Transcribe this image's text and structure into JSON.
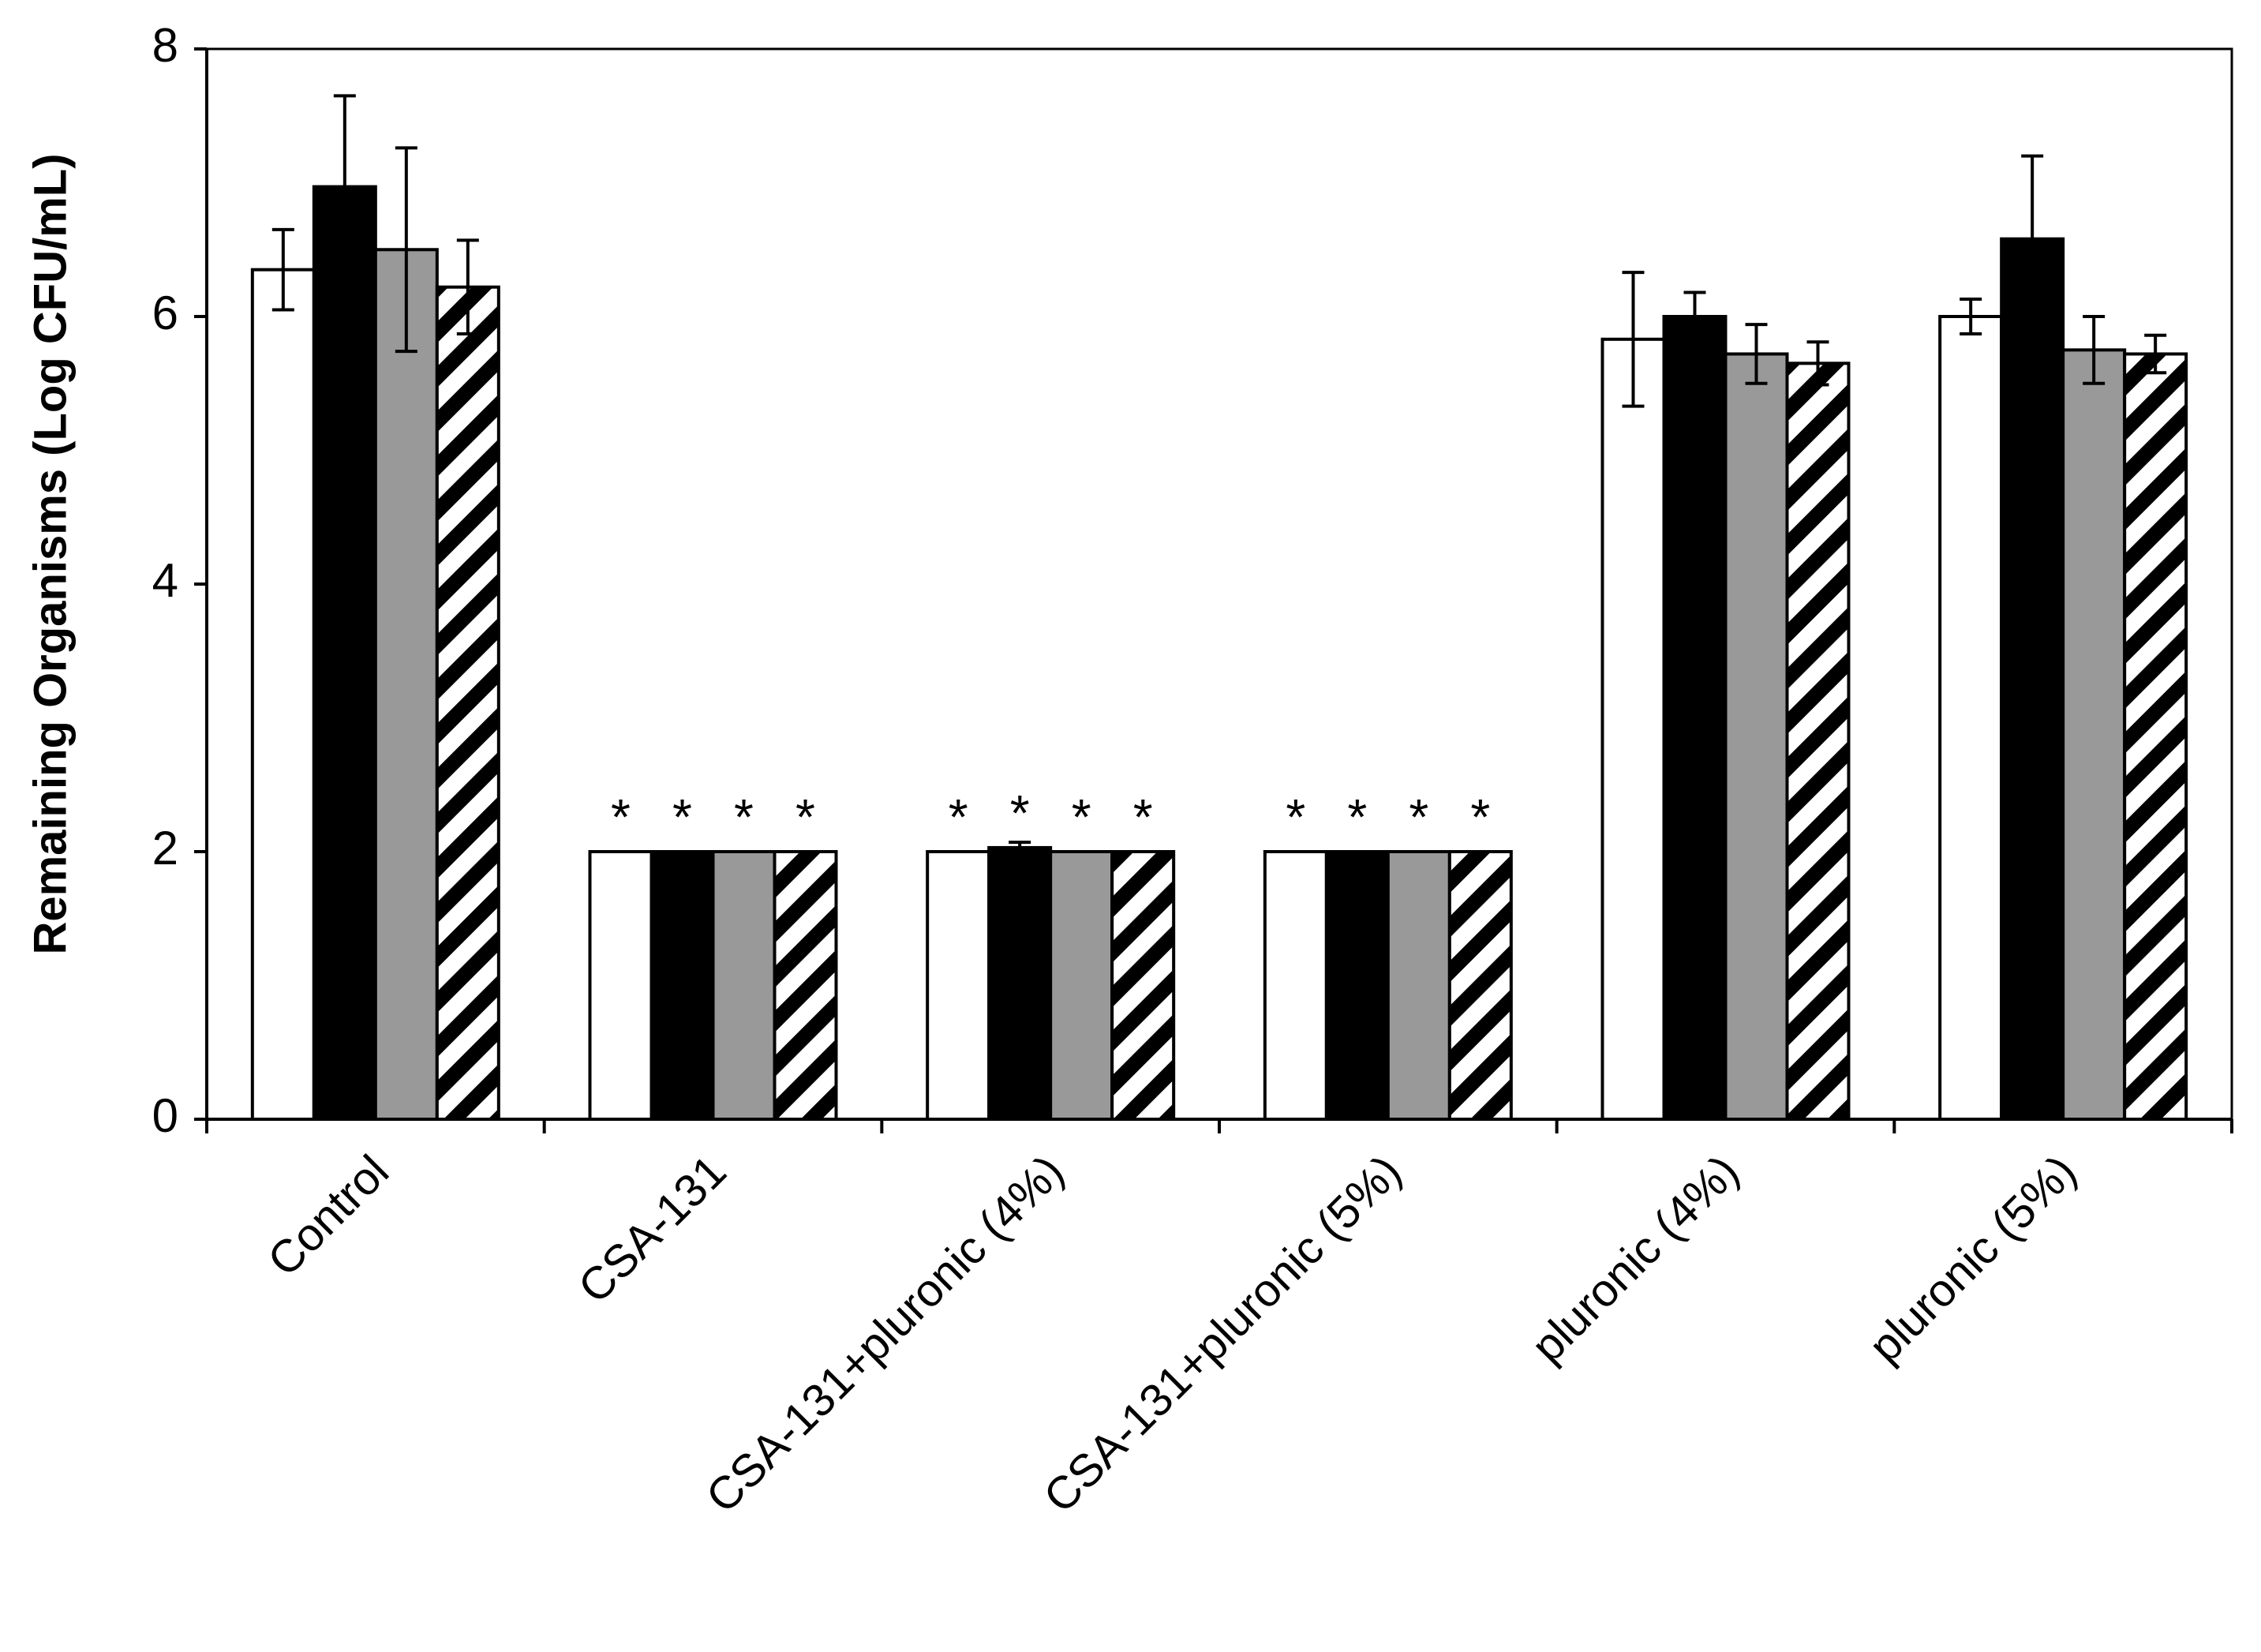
{
  "chart_data": {
    "type": "bar",
    "title": "",
    "xlabel": "",
    "ylabel": "Remaining Organisms (Log CFU/mL)",
    "ylim": [
      0,
      8
    ],
    "yticks": [
      0,
      2,
      4,
      6,
      8
    ],
    "grid": false,
    "legend": "none",
    "categories": [
      "Control",
      "CSA-131",
      "CSA-131+pluronic (4%)",
      "CSA-131+pluronic (5%)",
      "pluronic (4%)",
      "pluronic (5%)"
    ],
    "series": [
      {
        "name": "series-1",
        "style": "white",
        "values": [
          6.35,
          2.0,
          2.0,
          2.0,
          5.83,
          6.0
        ],
        "errors": [
          0.3,
          0,
          0,
          0,
          0.5,
          0.13
        ]
      },
      {
        "name": "series-2",
        "style": "black",
        "values": [
          6.97,
          2.0,
          2.03,
          2.0,
          6.0,
          6.58
        ],
        "errors": [
          0.68,
          0,
          0.04,
          0,
          0.18,
          0.62
        ]
      },
      {
        "name": "series-3",
        "style": "gray",
        "values": [
          6.5,
          2.0,
          2.0,
          2.0,
          5.72,
          5.75
        ],
        "errors": [
          0.76,
          0,
          0,
          0,
          0.22,
          0.25
        ]
      },
      {
        "name": "series-4",
        "style": "hatched",
        "values": [
          6.22,
          2.0,
          2.0,
          2.0,
          5.65,
          5.72
        ],
        "errors": [
          0.35,
          0,
          0,
          0,
          0.16,
          0.14
        ]
      }
    ],
    "significance_marker": "*",
    "significant": [
      [
        false,
        true,
        true,
        true,
        false,
        false
      ],
      [
        false,
        true,
        true,
        true,
        false,
        false
      ],
      [
        false,
        true,
        true,
        true,
        false,
        false
      ],
      [
        false,
        true,
        true,
        true,
        false,
        false
      ]
    ],
    "colors": {
      "white": "#ffffff",
      "black": "#000000",
      "gray": "#999999",
      "hatch_fg": "#000000",
      "hatch_bg": "#ffffff",
      "axis": "#000000"
    }
  }
}
